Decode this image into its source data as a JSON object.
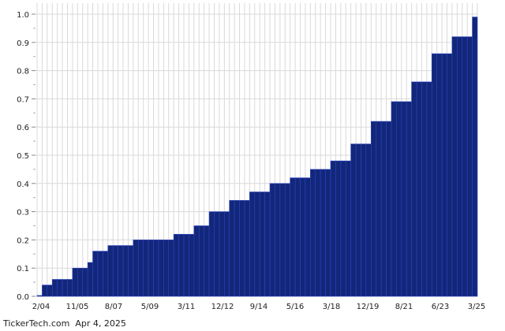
{
  "chart_data": {
    "type": "bar",
    "title": "",
    "xlabel": "",
    "ylabel": "",
    "ylim": [
      0,
      1.0
    ],
    "yticks": [
      "0.0",
      "0.1",
      "0.2",
      "0.3",
      "0.4",
      "0.5",
      "0.6",
      "0.7",
      "0.8",
      "0.9",
      "1.0"
    ],
    "xticks": [
      "2/04",
      "11/05",
      "8/07",
      "5/09",
      "3/11",
      "12/12",
      "9/14",
      "5/16",
      "3/18",
      "12/19",
      "8/21",
      "6/23",
      "3/25"
    ],
    "grid": true,
    "values": [
      0.003,
      0.04,
      0.04,
      0.06,
      0.06,
      0.06,
      0.06,
      0.1,
      0.1,
      0.1,
      0.12,
      0.16,
      0.16,
      0.16,
      0.18,
      0.18,
      0.18,
      0.18,
      0.18,
      0.2,
      0.2,
      0.2,
      0.2,
      0.2,
      0.2,
      0.2,
      0.2,
      0.22,
      0.22,
      0.22,
      0.22,
      0.25,
      0.25,
      0.25,
      0.3,
      0.3,
      0.3,
      0.3,
      0.34,
      0.34,
      0.34,
      0.34,
      0.37,
      0.37,
      0.37,
      0.37,
      0.4,
      0.4,
      0.4,
      0.4,
      0.42,
      0.42,
      0.42,
      0.42,
      0.45,
      0.45,
      0.45,
      0.45,
      0.48,
      0.48,
      0.48,
      0.48,
      0.54,
      0.54,
      0.54,
      0.54,
      0.62,
      0.62,
      0.62,
      0.62,
      0.69,
      0.69,
      0.69,
      0.69,
      0.76,
      0.76,
      0.76,
      0.76,
      0.86,
      0.86,
      0.86,
      0.86,
      0.92,
      0.92,
      0.92,
      0.92,
      0.99
    ],
    "colors": {
      "bar": "#13277a",
      "bar_edge": "#2a44c0",
      "grid": "#d9d9d9"
    }
  },
  "footer": {
    "source": "TickerTech.com",
    "date": "Apr 4, 2025"
  }
}
